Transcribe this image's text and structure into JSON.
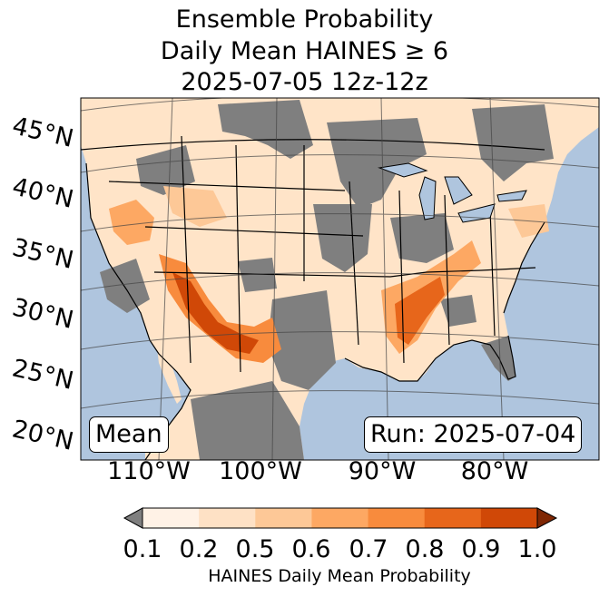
{
  "title": {
    "line1": "Ensemble Probability",
    "line2": "Daily Mean HAINES ≥ 6",
    "line3": "2025-07-05 12z-12z"
  },
  "map": {
    "latitude_labels": [
      "45°N",
      "40°N",
      "35°N",
      "30°N",
      "25°N",
      "20°N"
    ],
    "longitude_labels": [
      "110°W",
      "100°W",
      "90°W",
      "80°W"
    ],
    "statistic_label": "Mean",
    "run_label": "Run: 2025-07-04",
    "colors": {
      "ocean": "#afc5de",
      "below_threshold": "#7f7f7f",
      "land_background": "#ffffff"
    }
  },
  "colorbar": {
    "tick_labels": [
      "0.1",
      "0.2",
      "0.5",
      "0.6",
      "0.7",
      "0.8",
      "0.9",
      "1.0"
    ],
    "label": "HAINES Daily Mean Probability",
    "under_color": "#7f7f7f",
    "over_color": "#7f2704",
    "bins": [
      "#fff2e6",
      "#fee1c5",
      "#fdc897",
      "#fda863",
      "#f88b3d",
      "#e7661b",
      "#d04807"
    ]
  }
}
